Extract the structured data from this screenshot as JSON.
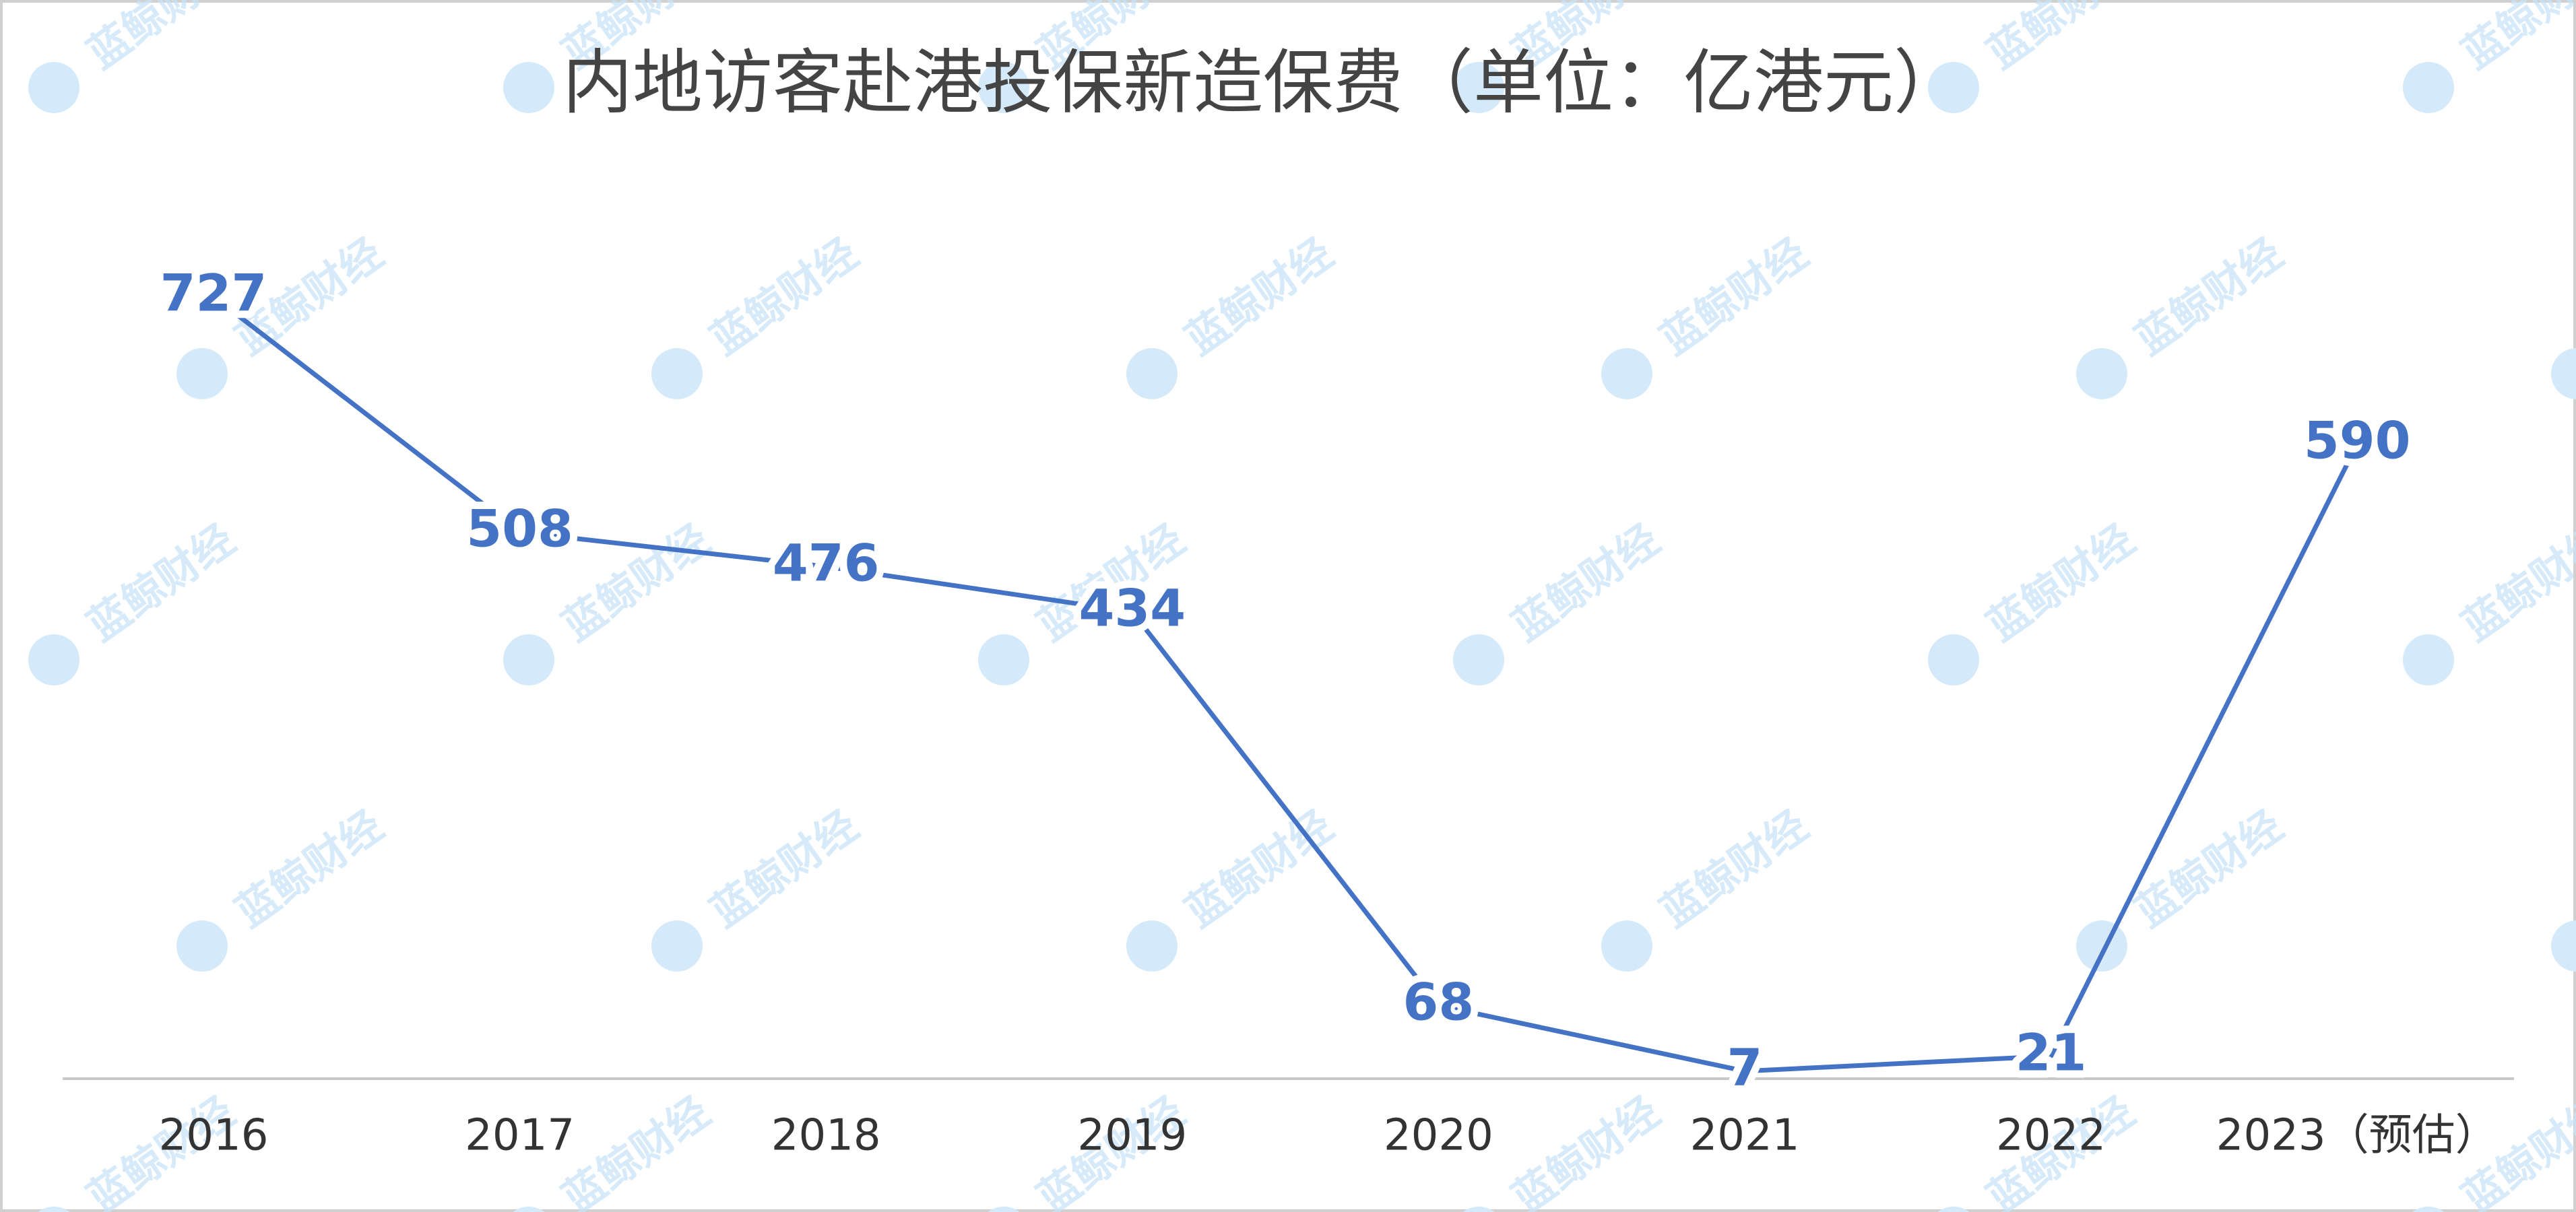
{
  "watermark": "蓝鲸财经",
  "chart_data": {
    "type": "line",
    "title": "内地访客赴港投保新造保费（单位：亿港元）",
    "categories": [
      "2016",
      "2017",
      "2018",
      "2019",
      "2020",
      "2021",
      "2022",
      "2023（预估）"
    ],
    "values": [
      727,
      508,
      476,
      434,
      68,
      7,
      21,
      590
    ],
    "color": "#4472c4",
    "ylim": [
      0,
      850
    ]
  }
}
